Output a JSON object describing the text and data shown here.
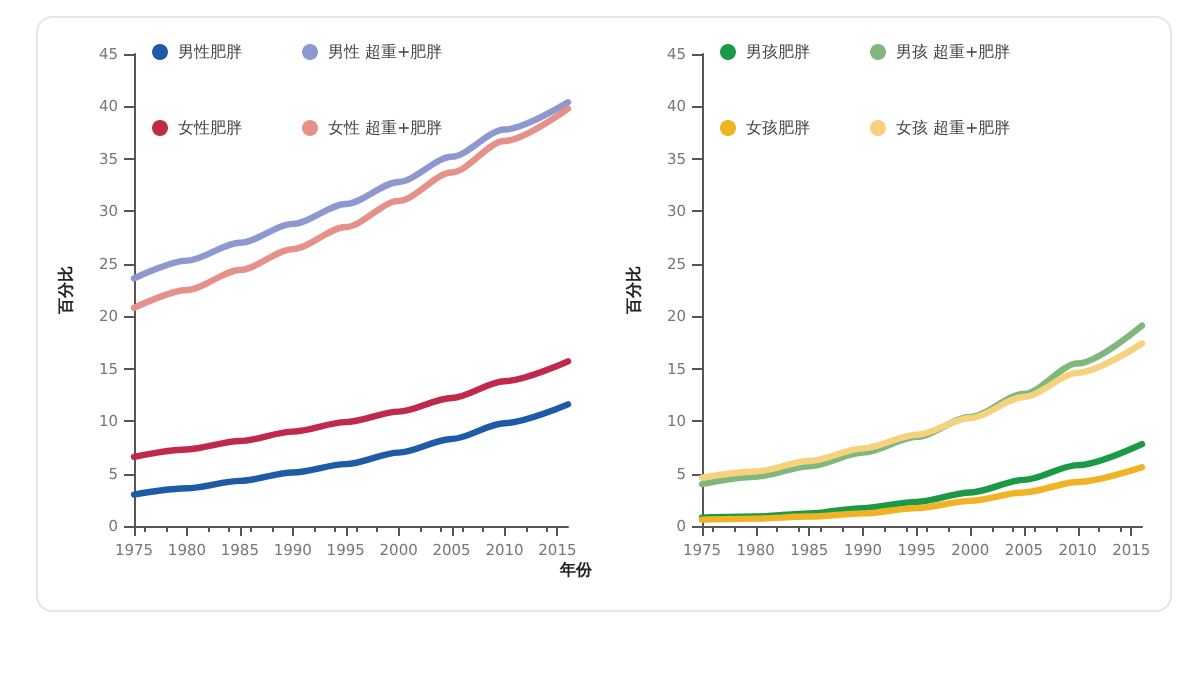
{
  "chart_data": [
    {
      "type": "line",
      "xlabel": "年份",
      "ylabel": "百分比",
      "x": [
        1975,
        1980,
        1985,
        1990,
        1995,
        2000,
        2005,
        2010,
        2016
      ],
      "xlim": [
        1975,
        2016
      ],
      "xticks": [
        1975,
        1980,
        1985,
        1990,
        1995,
        2000,
        2005,
        2010,
        2015
      ],
      "ylim": [
        0,
        45
      ],
      "yticks": [
        0,
        5,
        10,
        15,
        20,
        25,
        30,
        35,
        40,
        45
      ],
      "grid": false,
      "legend": "top left",
      "marker": "none",
      "line_style": "solid",
      "series": [
        {
          "name": "男性肥胖",
          "color": "#1f5aa6",
          "values": [
            3.0,
            3.6,
            4.3,
            5.1,
            5.9,
            7.0,
            8.3,
            9.8,
            11.6
          ]
        },
        {
          "name": "男性 超重+肥胖",
          "color": "#8e98d0",
          "values": [
            23.6,
            25.3,
            27.0,
            28.8,
            30.7,
            32.8,
            35.2,
            37.8,
            40.4
          ]
        },
        {
          "name": "女性肥胖",
          "color": "#c0294a",
          "values": [
            6.6,
            7.3,
            8.1,
            9.0,
            9.9,
            10.9,
            12.2,
            13.8,
            15.7
          ]
        },
        {
          "name": "女性 超重+肥胖",
          "color": "#e5918a",
          "values": [
            20.8,
            22.5,
            24.4,
            26.4,
            28.5,
            31.0,
            33.7,
            36.7,
            39.8
          ]
        }
      ]
    },
    {
      "type": "line",
      "ylabel": "百分比",
      "x": [
        1975,
        1980,
        1985,
        1990,
        1995,
        2000,
        2005,
        2010,
        2016
      ],
      "xlim": [
        1975,
        2016
      ],
      "xticks": [
        1975,
        1980,
        1985,
        1990,
        1995,
        2000,
        2005,
        2010,
        2015
      ],
      "ylim": [
        0,
        45
      ],
      "yticks": [
        0,
        5,
        10,
        15,
        20,
        25,
        30,
        35,
        40,
        45
      ],
      "grid": false,
      "legend": "top left",
      "marker": "none",
      "line_style": "solid",
      "series": [
        {
          "name": "男孩肥胖",
          "color": "#1a9a46",
          "values": [
            0.8,
            0.9,
            1.2,
            1.7,
            2.3,
            3.2,
            4.4,
            5.8,
            7.8
          ]
        },
        {
          "name": "男孩 超重+肥胖",
          "color": "#7fb77e",
          "values": [
            4.0,
            4.7,
            5.7,
            7.0,
            8.5,
            10.4,
            12.6,
            15.5,
            19.1
          ]
        },
        {
          "name": "女孩肥胖",
          "color": "#f0b323",
          "values": [
            0.6,
            0.7,
            0.9,
            1.2,
            1.7,
            2.4,
            3.2,
            4.2,
            5.6
          ]
        },
        {
          "name": "女孩 超重+肥胖",
          "color": "#f7d27e",
          "values": [
            4.6,
            5.2,
            6.2,
            7.4,
            8.7,
            10.3,
            12.3,
            14.6,
            17.4
          ]
        }
      ]
    }
  ]
}
